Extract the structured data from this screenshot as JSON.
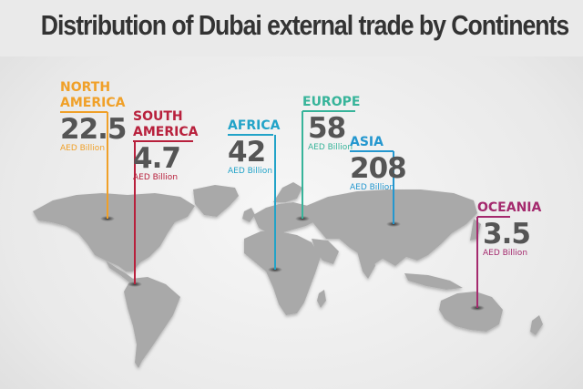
{
  "title": "Distribution of Dubai external trade by Continents",
  "chart_data": {
    "type": "bar",
    "title": "Distribution of Dubai external trade by Continents",
    "categories": [
      "NORTH AMERICA",
      "SOUTH AMERICA",
      "AFRICA",
      "EUROPE",
      "ASIA",
      "OCEANIA"
    ],
    "values": [
      22.5,
      4.7,
      42,
      58,
      208,
      3.5
    ],
    "value_labels": [
      "22.5",
      "4.7",
      "42",
      "58",
      "208",
      "3.5"
    ],
    "unit": "AED Billion",
    "colors": [
      "#f0a028",
      "#b8203c",
      "#22a3c8",
      "#37b49a",
      "#2497cf",
      "#a42a6e"
    ]
  },
  "labels": [
    {
      "name_lines": [
        "NORTH",
        "AMERICA"
      ],
      "value": "22.5",
      "unit": "AED Billion",
      "color": "#f0a028"
    },
    {
      "name_lines": [
        "SOUTH",
        "AMERICA"
      ],
      "value": "4.7",
      "unit": "AED Billion",
      "color": "#b8203c"
    },
    {
      "name_lines": [
        "AFRICA"
      ],
      "value": "42",
      "unit": "AED Billion",
      "color": "#22a3c8"
    },
    {
      "name_lines": [
        "EUROPE"
      ],
      "value": "58",
      "unit": "AED Billion",
      "color": "#37b49a"
    },
    {
      "name_lines": [
        "ASIA"
      ],
      "value": "208",
      "unit": "AED Billion",
      "color": "#2497cf"
    },
    {
      "name_lines": [
        "OCEANIA"
      ],
      "value": "3.5",
      "unit": "AED Billion",
      "color": "#a42a6e"
    }
  ]
}
